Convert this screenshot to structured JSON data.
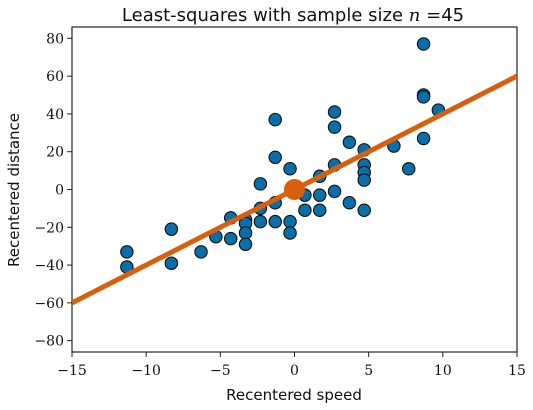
{
  "chart_data": {
    "type": "scatter",
    "title_text": "Least-squares with sample size ",
    "title_math": "n =",
    "title_value": "45",
    "xlabel": "Recentered speed",
    "ylabel": "Recentered distance",
    "xlim": [
      -15,
      15
    ],
    "ylim": [
      -86,
      86
    ],
    "xticks": [
      -15,
      -10,
      -5,
      0,
      5,
      10,
      15
    ],
    "yticks": [
      -80,
      -60,
      -40,
      -20,
      0,
      20,
      40,
      60,
      80
    ],
    "grid": false,
    "legend": "none",
    "point_color": "#0a6ea8",
    "line_color": "#d95f0e",
    "center_point": [
      0,
      0
    ],
    "fit_line": {
      "slope": 4.0,
      "intercept": 0
    },
    "points": [
      [
        -11.3,
        -33
      ],
      [
        -11.3,
        -41
      ],
      [
        -8.3,
        -21
      ],
      [
        -8.3,
        -39
      ],
      [
        -6.3,
        -33
      ],
      [
        -5.3,
        -25
      ],
      [
        -4.3,
        -15
      ],
      [
        -4.3,
        -26
      ],
      [
        -3.3,
        -16
      ],
      [
        -3.3,
        -18
      ],
      [
        -3.3,
        -23
      ],
      [
        -3.3,
        -29
      ],
      [
        -2.3,
        3
      ],
      [
        -2.3,
        -10
      ],
      [
        -2.3,
        -17
      ],
      [
        -1.3,
        37
      ],
      [
        -1.3,
        17
      ],
      [
        -1.3,
        -7
      ],
      [
        -1.3,
        -17
      ],
      [
        -0.3,
        11
      ],
      [
        -0.3,
        -17
      ],
      [
        -0.3,
        -23
      ],
      [
        0.7,
        -3
      ],
      [
        0.7,
        -11
      ],
      [
        1.7,
        7
      ],
      [
        1.7,
        -3
      ],
      [
        1.7,
        -11
      ],
      [
        2.7,
        41
      ],
      [
        2.7,
        33
      ],
      [
        2.7,
        13
      ],
      [
        2.7,
        -1
      ],
      [
        3.7,
        25
      ],
      [
        3.7,
        -7
      ],
      [
        4.7,
        21
      ],
      [
        4.7,
        13
      ],
      [
        4.7,
        9
      ],
      [
        4.7,
        5
      ],
      [
        4.7,
        -11
      ],
      [
        6.7,
        23
      ],
      [
        7.7,
        11
      ],
      [
        8.7,
        77
      ],
      [
        8.7,
        50
      ],
      [
        8.7,
        49
      ],
      [
        8.7,
        27
      ],
      [
        9.7,
        42
      ]
    ]
  }
}
